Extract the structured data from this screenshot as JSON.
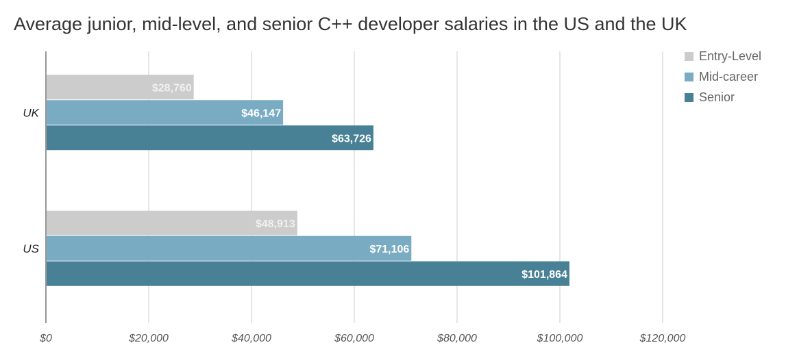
{
  "chart_data": {
    "type": "bar",
    "orientation": "horizontal",
    "title": "Average junior, mid-level, and senior C++ developer salaries in the US and the UK",
    "categories": [
      "UK",
      "US"
    ],
    "series": [
      {
        "name": "Entry-Level",
        "color": "#cccccc",
        "label_color": "#f0f0f0",
        "values": [
          28760,
          48913
        ],
        "labels": [
          "$28,760",
          "$48,913"
        ]
      },
      {
        "name": "Mid-career",
        "color": "#79abc3",
        "label_color": "#ffffff",
        "values": [
          46147,
          71106
        ],
        "labels": [
          "$46,147",
          "$71,106"
        ]
      },
      {
        "name": "Senior",
        "color": "#488196",
        "label_color": "#ffffff",
        "values": [
          63726,
          101864
        ],
        "labels": [
          "$63,726",
          "$101,864"
        ]
      }
    ],
    "xlim": [
      0,
      120000
    ],
    "xticks": [
      0,
      20000,
      40000,
      60000,
      80000,
      100000,
      120000
    ],
    "xtick_labels": [
      "$0",
      "$20,000",
      "$40,000",
      "$60,000",
      "$80,000",
      "$100,000",
      "$120,000"
    ],
    "grid": true,
    "legend": "top-right"
  }
}
